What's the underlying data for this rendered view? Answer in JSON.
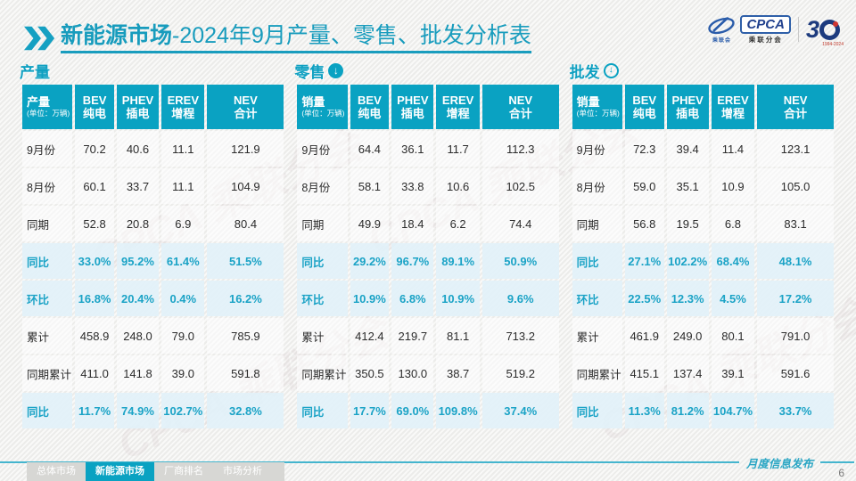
{
  "header": {
    "title_bold": "新能源市场",
    "title_rest": "-2024年9月产量、零售、批发分析表",
    "cpca_logo": {
      "emblem_caption": "乘联会",
      "acronym": "CPCA",
      "subtitle": "乘联分会"
    },
    "anniversary_logo": {
      "digit": "3",
      "years": "1994-2024"
    }
  },
  "tables": [
    {
      "section_title": "产量",
      "arrow": "none",
      "corner_label": "产量",
      "corner_unit": "(单位：万辆)",
      "columns": [
        {
          "en": "BEV",
          "cn": "纯电"
        },
        {
          "en": "PHEV",
          "cn": "插电"
        },
        {
          "en": "EREV",
          "cn": "增程"
        },
        {
          "en": "NEV",
          "cn": "合计"
        }
      ],
      "rows": [
        {
          "label": "9月份",
          "highlight": false,
          "values": [
            "70.2",
            "40.6",
            "11.1",
            "121.9"
          ]
        },
        {
          "label": "8月份",
          "highlight": false,
          "values": [
            "60.1",
            "33.7",
            "11.1",
            "104.9"
          ]
        },
        {
          "label": "同期",
          "highlight": false,
          "values": [
            "52.8",
            "20.8",
            "6.9",
            "80.4"
          ]
        },
        {
          "label": "同比",
          "highlight": true,
          "values": [
            "33.0%",
            "95.2%",
            "61.4%",
            "51.5%"
          ]
        },
        {
          "label": "环比",
          "highlight": true,
          "values": [
            "16.8%",
            "20.4%",
            "0.4%",
            "16.2%"
          ]
        },
        {
          "label": "累计",
          "highlight": false,
          "values": [
            "458.9",
            "248.0",
            "79.0",
            "785.9"
          ]
        },
        {
          "label": "同期累计",
          "highlight": false,
          "values": [
            "411.0",
            "141.8",
            "39.0",
            "591.8"
          ]
        },
        {
          "label": "同比",
          "highlight": true,
          "values": [
            "11.7%",
            "74.9%",
            "102.7%",
            "32.8%"
          ]
        }
      ]
    },
    {
      "section_title": "零售",
      "arrow": "filled",
      "corner_label": "销量",
      "corner_unit": "(单位：万辆)",
      "columns": [
        {
          "en": "BEV",
          "cn": "纯电"
        },
        {
          "en": "PHEV",
          "cn": "插电"
        },
        {
          "en": "EREV",
          "cn": "增程"
        },
        {
          "en": "NEV",
          "cn": "合计"
        }
      ],
      "rows": [
        {
          "label": "9月份",
          "highlight": false,
          "values": [
            "64.4",
            "36.1",
            "11.7",
            "112.3"
          ]
        },
        {
          "label": "8月份",
          "highlight": false,
          "values": [
            "58.1",
            "33.8",
            "10.6",
            "102.5"
          ]
        },
        {
          "label": "同期",
          "highlight": false,
          "values": [
            "49.9",
            "18.4",
            "6.2",
            "74.4"
          ]
        },
        {
          "label": "同比",
          "highlight": true,
          "values": [
            "29.2%",
            "96.7%",
            "89.1%",
            "50.9%"
          ]
        },
        {
          "label": "环比",
          "highlight": true,
          "values": [
            "10.9%",
            "6.8%",
            "10.9%",
            "9.6%"
          ]
        },
        {
          "label": "累计",
          "highlight": false,
          "values": [
            "412.4",
            "219.7",
            "81.1",
            "713.2"
          ]
        },
        {
          "label": "同期累计",
          "highlight": false,
          "values": [
            "350.5",
            "130.0",
            "38.7",
            "519.2"
          ]
        },
        {
          "label": "同比",
          "highlight": true,
          "values": [
            "17.7%",
            "69.0%",
            "109.8%",
            "37.4%"
          ]
        }
      ]
    },
    {
      "section_title": "批发",
      "arrow": "outline",
      "corner_label": "销量",
      "corner_unit": "(单位：万辆)",
      "columns": [
        {
          "en": "BEV",
          "cn": "纯电"
        },
        {
          "en": "PHEV",
          "cn": "插电"
        },
        {
          "en": "EREV",
          "cn": "增程"
        },
        {
          "en": "NEV",
          "cn": "合计"
        }
      ],
      "rows": [
        {
          "label": "9月份",
          "highlight": false,
          "values": [
            "72.3",
            "39.4",
            "11.4",
            "123.1"
          ]
        },
        {
          "label": "8月份",
          "highlight": false,
          "values": [
            "59.0",
            "35.1",
            "10.9",
            "105.0"
          ]
        },
        {
          "label": "同期",
          "highlight": false,
          "values": [
            "56.8",
            "19.5",
            "6.8",
            "83.1"
          ]
        },
        {
          "label": "同比",
          "highlight": true,
          "values": [
            "27.1%",
            "102.2%",
            "68.4%",
            "48.1%"
          ]
        },
        {
          "label": "环比",
          "highlight": true,
          "values": [
            "22.5%",
            "12.3%",
            "4.5%",
            "17.2%"
          ]
        },
        {
          "label": "累计",
          "highlight": false,
          "values": [
            "461.9",
            "249.0",
            "80.1",
            "791.0"
          ]
        },
        {
          "label": "同期累计",
          "highlight": false,
          "values": [
            "415.1",
            "137.4",
            "39.1",
            "591.6"
          ]
        },
        {
          "label": "同比",
          "highlight": true,
          "values": [
            "11.3%",
            "81.2%",
            "104.7%",
            "33.7%"
          ]
        }
      ]
    }
  ],
  "footer": {
    "tabs": [
      {
        "label": "总体市场",
        "active": false
      },
      {
        "label": "新能源市场",
        "active": true
      },
      {
        "label": "厂商排名",
        "active": false
      },
      {
        "label": "市场分析",
        "active": false
      }
    ],
    "publish_label": "月度信息发布",
    "page_number": "6"
  },
  "watermark_text": "CPCA 乘联分会",
  "colors": {
    "primary": "#0aa2c2",
    "highlight_bg": "#e2f1f8",
    "highlight_text": "#1ba3c6",
    "title": "#189cbd"
  }
}
